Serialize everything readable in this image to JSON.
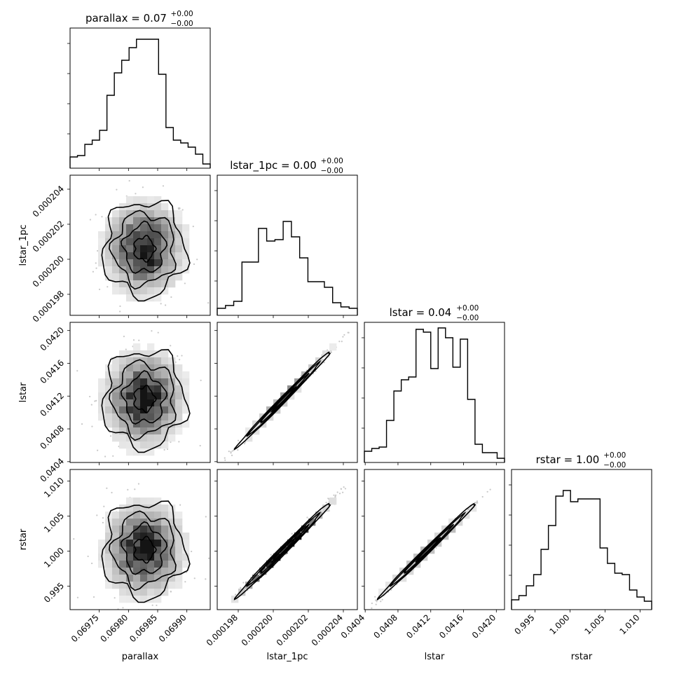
{
  "chart_data": {
    "type": "corner",
    "parameters": [
      "parallax",
      "lstar_1pc",
      "lstar",
      "rstar"
    ],
    "titles": [
      {
        "prefix": "parallax = 0.07",
        "sup": "+0.00",
        "sub": "−0.00"
      },
      {
        "prefix": "lstar_1pc = 0.00",
        "sup": "+0.00",
        "sub": "−0.00"
      },
      {
        "prefix": "lstar = 0.04",
        "sup": "+0.00",
        "sub": "−0.00"
      },
      {
        "prefix": "rstar = 1.00",
        "sup": "+0.00",
        "sub": "−0.00"
      }
    ],
    "ranges": [
      [
        0.0697,
        0.06994
      ],
      [
        0.0001968,
        0.0002048
      ],
      [
        0.04039,
        0.0421
      ],
      [
        0.99165,
        1.01165
      ]
    ],
    "ticks": [
      {
        "values": [
          0.06975,
          0.0698,
          0.06985,
          0.0699
        ],
        "labels": [
          "0.06975",
          "0.06980",
          "0.06985",
          "0.06990"
        ]
      },
      {
        "values": [
          0.000198,
          0.0002,
          0.000202,
          0.000204
        ],
        "labels": [
          "0.000198",
          "0.000200",
          "0.000202",
          "0.000204"
        ]
      },
      {
        "values": [
          0.0404,
          0.0408,
          0.0412,
          0.0416,
          0.042
        ],
        "labels": [
          "0.0404",
          "0.0408",
          "0.0412",
          "0.0416",
          "0.0420"
        ]
      },
      {
        "values": [
          0.995,
          1.0,
          1.005,
          1.01
        ],
        "labels": [
          "0.995",
          "1.000",
          "1.005",
          "1.010"
        ]
      }
    ],
    "histograms": [
      [
        0.08,
        0.09,
        0.17,
        0.2,
        0.27,
        0.52,
        0.68,
        0.77,
        0.86,
        0.92,
        0.92,
        0.92,
        0.67,
        0.29,
        0.2,
        0.18,
        0.15,
        0.1,
        0.03
      ],
      [
        0.05,
        0.07,
        0.1,
        0.38,
        0.38,
        0.62,
        0.53,
        0.54,
        0.67,
        0.56,
        0.41,
        0.24,
        0.24,
        0.2,
        0.09,
        0.06,
        0.05
      ],
      [
        0.08,
        0.1,
        0.11,
        0.3,
        0.51,
        0.59,
        0.61,
        0.95,
        0.93,
        0.67,
        0.96,
        0.89,
        0.68,
        0.88,
        0.45,
        0.13,
        0.07,
        0.07,
        0.03
      ],
      [
        0.07,
        0.1,
        0.17,
        0.25,
        0.43,
        0.6,
        0.81,
        0.85,
        0.77,
        0.79,
        0.79,
        0.79,
        0.44,
        0.33,
        0.26,
        0.25,
        0.14,
        0.09,
        0.06
      ]
    ],
    "correlations": [
      [
        1,
        0,
        0,
        0
      ],
      [
        0,
        1,
        0.996,
        0.994
      ],
      [
        0,
        0.996,
        1,
        0.996
      ],
      [
        0,
        0.994,
        0.996,
        1
      ]
    ],
    "means": [
      0.069827,
      0.0002006,
      0.041165,
      1.0002
    ],
    "sigmas": [
      3.5e-05,
      1.35e-06,
      0.000295,
      0.0034
    ],
    "grid": false,
    "legend": "none"
  }
}
